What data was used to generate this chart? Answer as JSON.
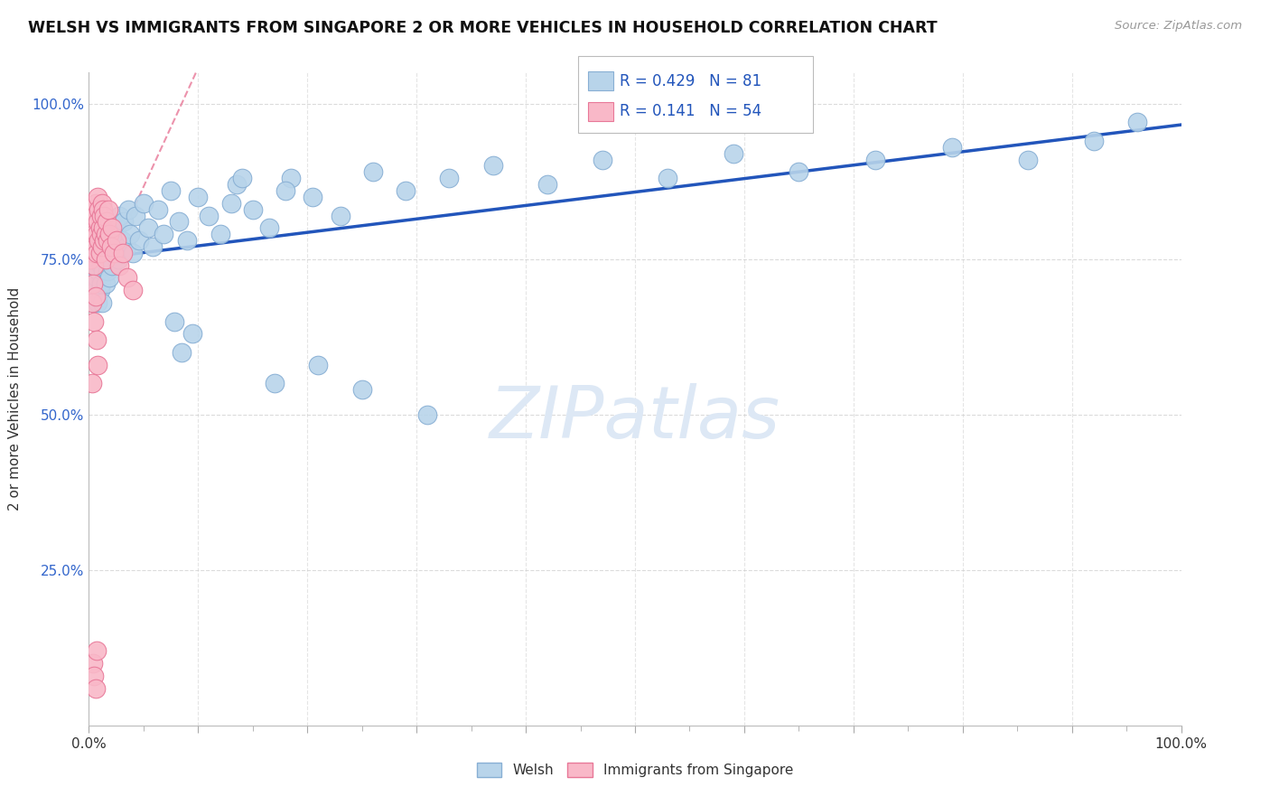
{
  "title": "WELSH VS IMMIGRANTS FROM SINGAPORE 2 OR MORE VEHICLES IN HOUSEHOLD CORRELATION CHART",
  "source": "Source: ZipAtlas.com",
  "ylabel": "2 or more Vehicles in Household",
  "ytick_values": [
    0.25,
    0.5,
    0.75,
    1.0
  ],
  "legend_welsh": "Welsh",
  "legend_singapore": "Immigrants from Singapore",
  "R_welsh": 0.429,
  "N_welsh": 81,
  "R_singapore": 0.141,
  "N_singapore": 54,
  "welsh_color": "#b8d4ea",
  "welsh_edge_color": "#88afd4",
  "singapore_color": "#f9b8c8",
  "singapore_edge_color": "#e87898",
  "regression_line_color": "#2255bb",
  "singapore_line_color": "#e87898",
  "background_color": "#ffffff",
  "grid_color": "#cccccc",
  "title_color": "#111111",
  "source_color": "#999999",
  "axis_color": "#3366cc",
  "watermark_color": "#dde8f5",
  "welsh_x": [
    0.003,
    0.004,
    0.005,
    0.006,
    0.006,
    0.007,
    0.007,
    0.008,
    0.008,
    0.009,
    0.009,
    0.01,
    0.01,
    0.011,
    0.011,
    0.012,
    0.012,
    0.013,
    0.014,
    0.015,
    0.015,
    0.016,
    0.017,
    0.018,
    0.019,
    0.02,
    0.021,
    0.022,
    0.024,
    0.025,
    0.027,
    0.028,
    0.03,
    0.032,
    0.034,
    0.036,
    0.038,
    0.04,
    0.043,
    0.046,
    0.05,
    0.054,
    0.058,
    0.063,
    0.068,
    0.075,
    0.082,
    0.09,
    0.1,
    0.11,
    0.12,
    0.135,
    0.15,
    0.165,
    0.185,
    0.205,
    0.23,
    0.26,
    0.29,
    0.33,
    0.37,
    0.42,
    0.47,
    0.53,
    0.59,
    0.65,
    0.72,
    0.79,
    0.86,
    0.92,
    0.96,
    0.21,
    0.25,
    0.31,
    0.18,
    0.14,
    0.17,
    0.13,
    0.095,
    0.085,
    0.078
  ],
  "welsh_y": [
    0.72,
    0.68,
    0.76,
    0.74,
    0.7,
    0.78,
    0.72,
    0.75,
    0.68,
    0.76,
    0.73,
    0.7,
    0.77,
    0.74,
    0.71,
    0.76,
    0.68,
    0.73,
    0.78,
    0.71,
    0.75,
    0.79,
    0.73,
    0.76,
    0.72,
    0.8,
    0.74,
    0.78,
    0.76,
    0.8,
    0.75,
    0.82,
    0.78,
    0.81,
    0.77,
    0.83,
    0.79,
    0.76,
    0.82,
    0.78,
    0.84,
    0.8,
    0.77,
    0.83,
    0.79,
    0.86,
    0.81,
    0.78,
    0.85,
    0.82,
    0.79,
    0.87,
    0.83,
    0.8,
    0.88,
    0.85,
    0.82,
    0.89,
    0.86,
    0.88,
    0.9,
    0.87,
    0.91,
    0.88,
    0.92,
    0.89,
    0.91,
    0.93,
    0.91,
    0.94,
    0.97,
    0.58,
    0.54,
    0.5,
    0.86,
    0.88,
    0.55,
    0.84,
    0.63,
    0.6,
    0.65
  ],
  "singapore_x": [
    0.001,
    0.001,
    0.002,
    0.002,
    0.003,
    0.003,
    0.004,
    0.004,
    0.005,
    0.005,
    0.005,
    0.006,
    0.006,
    0.007,
    0.007,
    0.008,
    0.008,
    0.009,
    0.009,
    0.01,
    0.01,
    0.011,
    0.011,
    0.012,
    0.012,
    0.013,
    0.013,
    0.014,
    0.014,
    0.015,
    0.015,
    0.016,
    0.017,
    0.018,
    0.019,
    0.02,
    0.021,
    0.023,
    0.025,
    0.028,
    0.031,
    0.035,
    0.04,
    0.003,
    0.004,
    0.005,
    0.006,
    0.007,
    0.008,
    0.003,
    0.004,
    0.005,
    0.006,
    0.007
  ],
  "singapore_y": [
    0.8,
    0.75,
    0.82,
    0.77,
    0.78,
    0.83,
    0.76,
    0.8,
    0.79,
    0.74,
    0.82,
    0.77,
    0.84,
    0.79,
    0.76,
    0.81,
    0.85,
    0.78,
    0.83,
    0.8,
    0.76,
    0.82,
    0.79,
    0.84,
    0.77,
    0.8,
    0.83,
    0.78,
    0.82,
    0.79,
    0.75,
    0.81,
    0.78,
    0.83,
    0.79,
    0.77,
    0.8,
    0.76,
    0.78,
    0.74,
    0.76,
    0.72,
    0.7,
    0.68,
    0.71,
    0.65,
    0.69,
    0.62,
    0.58,
    0.55,
    0.1,
    0.08,
    0.06,
    0.12
  ]
}
